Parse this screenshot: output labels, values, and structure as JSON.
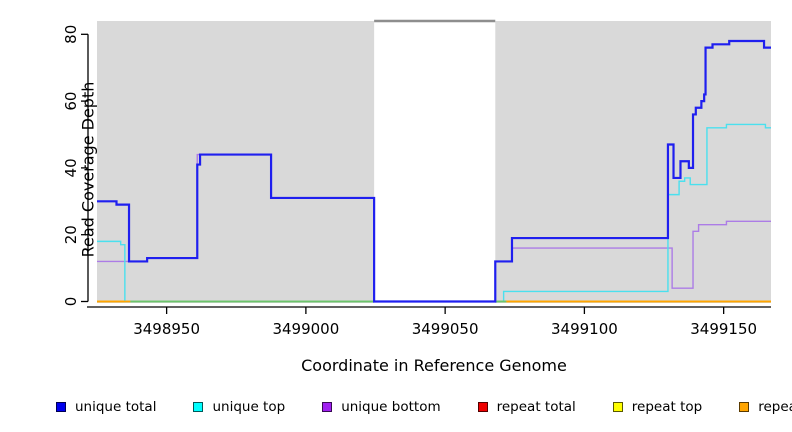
{
  "chart_data": {
    "type": "line",
    "step": true,
    "title": "",
    "xlabel": "Coordinate in Reference Genome",
    "ylabel": "Read Coverage Depth",
    "xlim": [
      3498925,
      3499167
    ],
    "ylim": [
      0,
      84
    ],
    "x_ticks": [
      3498950,
      3499000,
      3499050,
      3499100,
      3499150
    ],
    "x_tick_labels": [
      "3498950",
      "3499000",
      "3499050",
      "3499100",
      "3499150"
    ],
    "y_ticks": [
      0,
      20,
      40,
      60,
      80
    ],
    "y_tick_labels": [
      "0",
      "20",
      "40",
      "60",
      "80"
    ],
    "grid": false,
    "plot_bg": "#D9D9D9",
    "gap_top_border_color": "#8E8E8E",
    "axis_color": "#000000",
    "background_regions": [
      {
        "x1": 3498925,
        "x2": 3499024.5
      },
      {
        "x1": 3499068,
        "x2": 3499167
      }
    ],
    "gap_region": {
      "x1": 3499024.5,
      "x2": 3499068
    },
    "series": [
      {
        "name": "unique total",
        "legend_color": "#0000EE",
        "line_color": "#1F1FEF",
        "line_width": 2.2,
        "end": 3499167,
        "points": [
          [
            3498925,
            30
          ],
          [
            3498932,
            29
          ],
          [
            3498936.5,
            12
          ],
          [
            3498943,
            13
          ],
          [
            3498961,
            41
          ],
          [
            3498962,
            44
          ],
          [
            3498987.5,
            31
          ],
          [
            3499024.5,
            0
          ],
          [
            3499068,
            12
          ],
          [
            3499074,
            19
          ],
          [
            3499130,
            47
          ],
          [
            3499132,
            37
          ],
          [
            3499134.5,
            42
          ],
          [
            3499137.5,
            40
          ],
          [
            3499139,
            56
          ],
          [
            3499140,
            58
          ],
          [
            3499142,
            60
          ],
          [
            3499143,
            62
          ],
          [
            3499143.5,
            76
          ],
          [
            3499146,
            77
          ],
          [
            3499152,
            78
          ],
          [
            3499164.5,
            76
          ]
        ]
      },
      {
        "name": "unique top",
        "legend_color": "#00FFFF",
        "line_color": "#4AE0EE",
        "line_width": 1.4,
        "end": 3499167,
        "points": [
          [
            3498925,
            18
          ],
          [
            3498933.5,
            17
          ],
          [
            3498935,
            0
          ],
          [
            3499071,
            3
          ],
          [
            3499130,
            32
          ],
          [
            3499134,
            36
          ],
          [
            3499136,
            37
          ],
          [
            3499138,
            35
          ],
          [
            3499144,
            52
          ],
          [
            3499151,
            53
          ],
          [
            3499165,
            52
          ]
        ]
      },
      {
        "name": "unique bottom",
        "legend_color": "#A020F0",
        "line_color": "#AC7CE6",
        "line_width": 1.4,
        "end": 3499167,
        "points": [
          [
            3498925,
            12
          ],
          [
            3498943,
            13
          ],
          [
            3498961,
            44
          ],
          [
            3498987.5,
            31
          ],
          [
            3499024.5,
            0
          ],
          [
            3499068,
            12
          ],
          [
            3499074,
            16
          ],
          [
            3499131.5,
            4
          ],
          [
            3499139,
            21
          ],
          [
            3499141,
            23
          ],
          [
            3499151,
            24
          ]
        ]
      },
      {
        "name": "repeat total",
        "legend_color": "#EE0000",
        "line_color": "#EE0000",
        "line_width": 1.4,
        "end": 3499167,
        "points": [
          [
            3498925,
            0
          ]
        ]
      },
      {
        "name": "repeat top",
        "legend_color": "#FFFF00",
        "line_color": "#FFFF00",
        "line_width": 1.4,
        "end": 3499167,
        "points": [
          [
            3498925,
            0
          ]
        ]
      },
      {
        "name": "repeat bottom",
        "legend_color": "#FFA500",
        "line_color": "#FFA500",
        "line_width": 1.8,
        "end": 3499167,
        "points": [
          [
            3498925,
            0
          ]
        ]
      }
    ],
    "baseline_segments": [
      {
        "x1": 3498925,
        "x2": 3498937,
        "color": "#FFA500"
      },
      {
        "x1": 3498937,
        "x2": 3499024.5,
        "color": "#6CC46C"
      },
      {
        "x1": 3499068,
        "x2": 3499072,
        "color": "#6CC46C"
      },
      {
        "x1": 3499072,
        "x2": 3499167,
        "color": "#FFA500"
      }
    ],
    "legend_position": "bottom",
    "legend": [
      {
        "label": "unique total",
        "color": "#0000EE"
      },
      {
        "label": "unique top",
        "color": "#00FFFF"
      },
      {
        "label": "unique bottom",
        "color": "#A020F0"
      },
      {
        "label": "repeat total",
        "color": "#EE0000"
      },
      {
        "label": "repeat top",
        "color": "#FFFF00"
      },
      {
        "label": "repeat bottom",
        "color": "#FFA500"
      }
    ]
  }
}
